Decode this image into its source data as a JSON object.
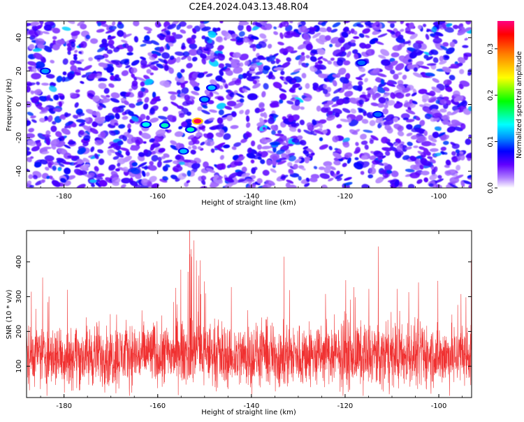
{
  "title": "C2E4.2024.043.13.48.R04",
  "chart_data": [
    {
      "type": "heatmap",
      "xlabel": "Height of straight line (km)",
      "ylabel": "Frequency (Hz)",
      "xlim": [
        -188,
        -93
      ],
      "ylim": [
        -50,
        50
      ],
      "xticks": [
        -180,
        -160,
        -140,
        -120,
        -100
      ],
      "yticks": [
        -40,
        -20,
        0,
        20,
        40
      ],
      "colorbar": {
        "label": "Normalized spectral amplitude",
        "range": [
          0,
          0.36
        ],
        "ticks": [
          0.0,
          0.1,
          0.2,
          0.3
        ],
        "colors": [
          "#ffffff",
          "#b080ff",
          "#6000ff",
          "#0000ff",
          "#0090ff",
          "#00ffff",
          "#00ff00",
          "#ffff00",
          "#ff8000",
          "#ff0000",
          "#ff0080"
        ]
      },
      "features": [
        {
          "x": -151.5,
          "y": -10,
          "value": 0.35
        },
        {
          "x": -153,
          "y": -15,
          "value": 0.15
        },
        {
          "x": -162.5,
          "y": -12,
          "value": 0.14
        },
        {
          "x": -158.5,
          "y": -12.5,
          "value": 0.15
        },
        {
          "x": -148.5,
          "y": 10,
          "value": 0.12
        },
        {
          "x": -150,
          "y": 3,
          "value": 0.11
        },
        {
          "x": -154.5,
          "y": -28,
          "value": 0.12
        },
        {
          "x": -184,
          "y": 20,
          "value": 0.11
        },
        {
          "x": -116.5,
          "y": 25,
          "value": 0.1
        },
        {
          "x": -113,
          "y": -6,
          "value": 0.1
        }
      ]
    },
    {
      "type": "line",
      "xlabel": "Height of straight line (km)",
      "ylabel": "SNR (10 * v/v)",
      "xlim": [
        -188,
        -93
      ],
      "ylim": [
        10,
        490
      ],
      "xticks": [
        -180,
        -160,
        -140,
        -120,
        -100
      ],
      "yticks": [
        100,
        200,
        300,
        400
      ],
      "color": "#f03030",
      "series": [
        {
          "values": [
            [
              -188,
              130
            ],
            [
              -186,
              135
            ],
            [
              -184,
              128
            ],
            [
              -182,
              132
            ],
            [
              -180,
              130
            ],
            [
              -178,
              133
            ],
            [
              -176,
              129
            ],
            [
              -174,
              131
            ],
            [
              -172,
              135
            ],
            [
              -170,
              128
            ],
            [
              -168,
              132
            ],
            [
              -166,
              136
            ],
            [
              -164,
              130
            ],
            [
              -162,
              140
            ],
            [
              -160,
              135
            ],
            [
              -158,
              133
            ],
            [
              -156,
              138
            ],
            [
              -154,
              142
            ],
            [
              -152,
              145
            ],
            [
              -150,
              140
            ],
            [
              -148,
              135
            ],
            [
              -146,
              132
            ],
            [
              -144,
              128
            ],
            [
              -142,
              131
            ],
            [
              -140,
              129
            ],
            [
              -138,
              132
            ],
            [
              -136,
              130
            ],
            [
              -134,
              128
            ],
            [
              -132,
              131
            ],
            [
              -130,
              129
            ],
            [
              -128,
              133
            ],
            [
              -126,
              130
            ],
            [
              -124,
              132
            ],
            [
              -122,
              128
            ],
            [
              -120,
              131
            ],
            [
              -118,
              129
            ],
            [
              -116,
              132
            ],
            [
              -114,
              130
            ],
            [
              -112,
              128
            ],
            [
              -110,
              131
            ],
            [
              -108,
              129
            ],
            [
              -106,
              130
            ],
            [
              -104,
              128
            ],
            [
              -102,
              131
            ],
            [
              -100,
              129
            ],
            [
              -98,
              130
            ],
            [
              -96,
              128
            ],
            [
              -94,
              130
            ]
          ]
        }
      ]
    }
  ]
}
